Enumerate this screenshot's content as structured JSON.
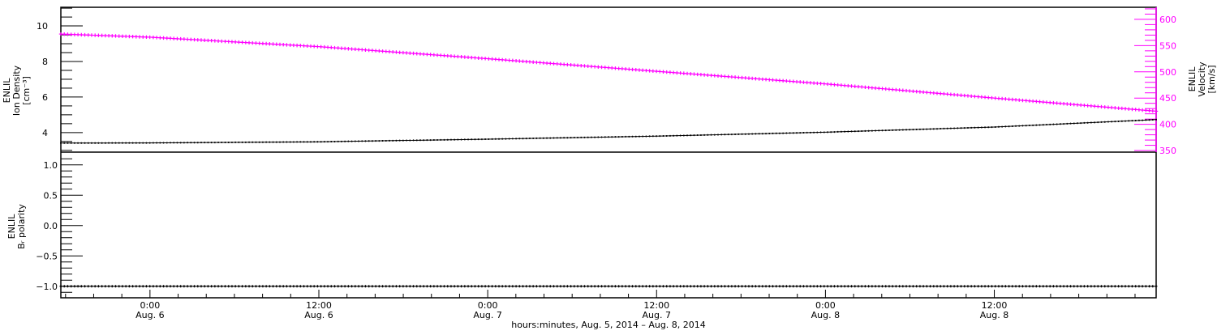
{
  "chart_data": [
    {
      "type": "line",
      "panel": "top",
      "series": [
        {
          "label_lines": [
            "ENLIL",
            "Ion Density",
            "[cm⁻³]"
          ],
          "axis": "left",
          "color": "#000000",
          "marker": "plus",
          "x": [
            "2014-08-05 17:40",
            "2014-08-06 00:00",
            "2014-08-06 12:00",
            "2014-08-07 00:00",
            "2014-08-07 12:00",
            "2014-08-08 00:00",
            "2014-08-08 12:00",
            "2014-08-08 23:30"
          ],
          "values": [
            3.41,
            3.42,
            3.48,
            3.63,
            3.8,
            4.02,
            4.31,
            4.73
          ]
        },
        {
          "label_lines": [
            "ENLIL",
            "Velocity",
            "[km/s]"
          ],
          "axis": "right",
          "color": "#ff00ff",
          "marker": "plus",
          "x": [
            "2014-08-05 17:40",
            "2014-08-06 00:00",
            "2014-08-06 12:00",
            "2014-08-07 00:00",
            "2014-08-07 12:00",
            "2014-08-08 00:00",
            "2014-08-08 12:00",
            "2014-08-08 23:30"
          ],
          "values": [
            572,
            566,
            548,
            525,
            501,
            477,
            450,
            425
          ]
        }
      ],
      "left_axis": {
        "ylim": [
          2.9,
          11.05
        ],
        "ticks": [
          "4",
          "6",
          "8",
          "10"
        ],
        "color": "#000000"
      },
      "right_axis": {
        "ylim": [
          347,
          623
        ],
        "ticks": [
          "350",
          "400",
          "450",
          "500",
          "550",
          "600"
        ],
        "color": "#ff00ff"
      }
    },
    {
      "type": "line",
      "panel": "bottom",
      "series": [
        {
          "label_lines": [
            "ENLIL",
            "Bᵣ polarity"
          ],
          "axis": "left",
          "color": "#000000",
          "marker": "plus",
          "x": [
            "2014-08-05 17:40",
            "2014-08-08 23:30"
          ],
          "values": [
            -1.0,
            -1.0
          ]
        }
      ],
      "left_axis": {
        "ylim": [
          -1.19,
          1.21
        ],
        "ticks": [
          "−1.0",
          "−0.5",
          "0.0",
          "0.5",
          "1.0"
        ],
        "tick_values": [
          -1.0,
          -0.5,
          0.0,
          0.5,
          1.0
        ]
      }
    }
  ],
  "x_axis": {
    "xlim": [
      "2014-08-05 17:40",
      "2014-08-08 23:30"
    ],
    "ticks": [
      {
        "time": "2014-08-06 00:00",
        "line1": "0:00",
        "line2": "Aug. 6"
      },
      {
        "time": "2014-08-06 12:00",
        "line1": "12:00",
        "line2": "Aug. 6"
      },
      {
        "time": "2014-08-07 00:00",
        "line1": "0:00",
        "line2": "Aug. 7"
      },
      {
        "time": "2014-08-07 12:00",
        "line1": "12:00",
        "line2": "Aug. 7"
      },
      {
        "time": "2014-08-08 00:00",
        "line1": "0:00",
        "line2": "Aug. 8"
      },
      {
        "time": "2014-08-08 12:00",
        "line1": "12:00",
        "line2": "Aug. 8"
      }
    ],
    "label": "hours:minutes, Aug.  5, 2014 – Aug.  8, 2014"
  }
}
